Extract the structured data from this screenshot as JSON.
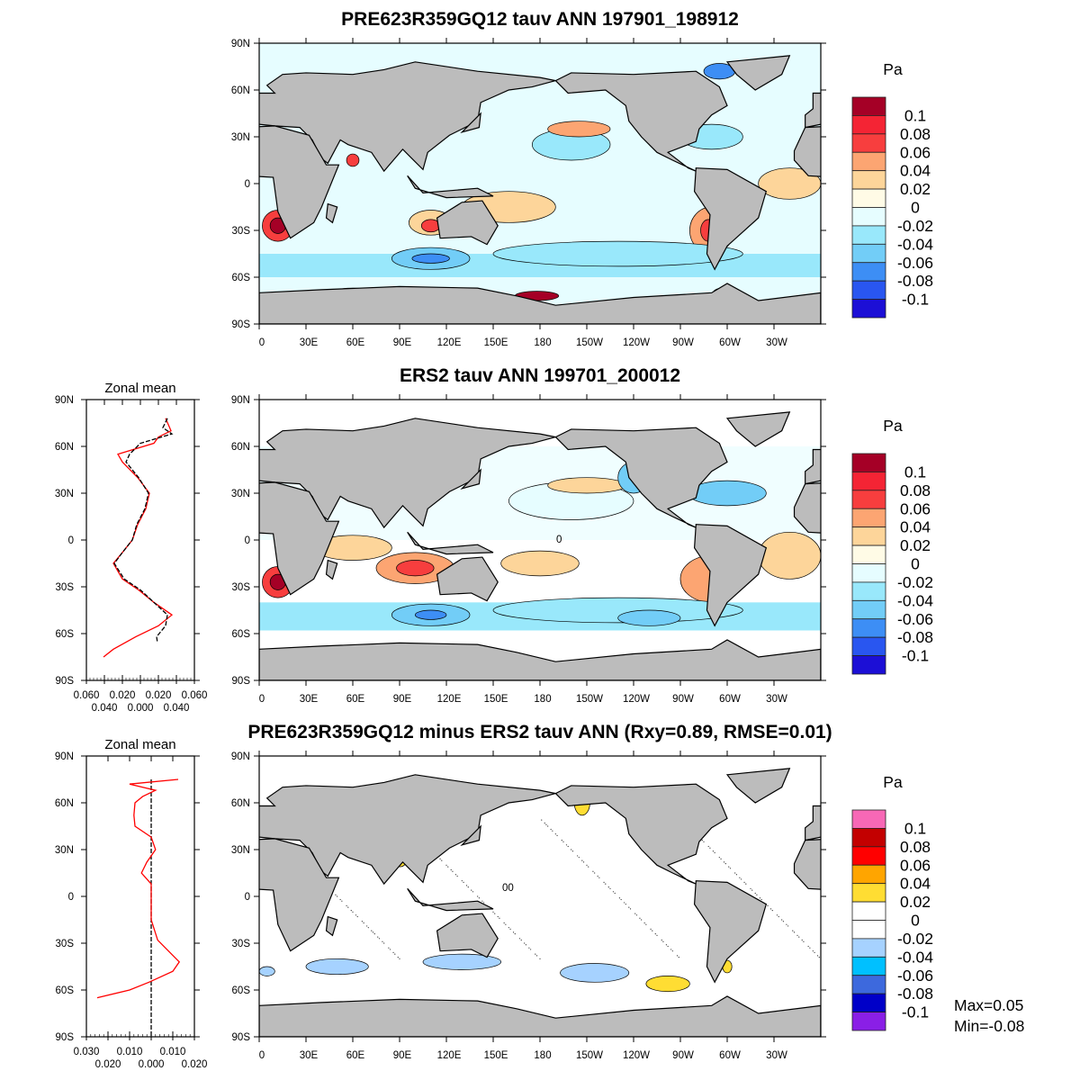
{
  "panels": [
    {
      "title": "PRE623R359GQ12 tauv ANN 197901_198912",
      "units": "Pa",
      "colorbar": "model"
    },
    {
      "title": "ERS2 tauv ANN 199701_200012",
      "units": "Pa",
      "colorbar": "model",
      "contour_label": "0"
    },
    {
      "title": "PRE623R359GQ12 minus ERS2 tauv ANN (Rxy=0.89, RMSE=0.01)",
      "units": "Pa",
      "colorbar": "diff",
      "contour_label": "00"
    }
  ],
  "lat_labels": [
    "90N",
    "60N",
    "30N",
    "0",
    "30S",
    "60S",
    "90S"
  ],
  "lon_labels": [
    "0",
    "30E",
    "60E",
    "90E",
    "120E",
    "150E",
    "180",
    "150W",
    "120W",
    "90W",
    "60W",
    "30W"
  ],
  "colorbar_labels": [
    "0.1",
    "0.08",
    "0.06",
    "0.04",
    "0.02",
    "0",
    "-0.02",
    "-0.04",
    "-0.06",
    "-0.08",
    "-0.1"
  ],
  "colorbar_colors": {
    "model": [
      "#a50026",
      "#f42434",
      "#f73e3e",
      "#fca572",
      "#fdd59a",
      "#fffbe6",
      "#e6fdff",
      "#99e8fb",
      "#72cdf7",
      "#3d8ef5",
      "#2956f0",
      "#1c0fd6"
    ],
    "diff": [
      "#f768b6",
      "#c30000",
      "#ff0000",
      "#ffa500",
      "#ffdd33",
      "#ffffff",
      "#ffffff",
      "#a6d2ff",
      "#00c0ff",
      "#3d69dd",
      "#0000c8",
      "#8a1fe6"
    ]
  },
  "stats": {
    "max": "Max=0.05",
    "min": "Min=-0.08"
  },
  "land_color": "#bcbcbc",
  "zonal_mean": [
    {
      "title": "Zonal mean",
      "x_tick_labels": [
        "0.060",
        "0.040",
        "0.020",
        "0.000",
        "0.020",
        "0.040",
        "0.060"
      ],
      "xlim": [
        -0.06,
        0.06
      ],
      "model": [
        [
          78,
          0.03
        ],
        [
          72,
          0.025
        ],
        [
          68,
          0.035
        ],
        [
          62,
          0.0
        ],
        [
          55,
          -0.012
        ],
        [
          50,
          -0.016
        ],
        [
          40,
          -0.002
        ],
        [
          30,
          0.009
        ],
        [
          20,
          0.005
        ],
        [
          10,
          -0.004
        ],
        [
          0,
          -0.009
        ],
        [
          -8,
          -0.02
        ],
        [
          -15,
          -0.029
        ],
        [
          -25,
          -0.018
        ],
        [
          -32,
          0.0
        ],
        [
          -40,
          0.015
        ],
        [
          -48,
          0.03
        ],
        [
          -55,
          0.028
        ],
        [
          -62,
          0.018
        ],
        [
          -66,
          0.019
        ]
      ],
      "obs": [
        [
          78,
          0.028
        ],
        [
          70,
          0.034
        ],
        [
          66,
          0.02
        ],
        [
          62,
          0.015
        ],
        [
          55,
          -0.025
        ],
        [
          50,
          -0.02
        ],
        [
          40,
          -0.003
        ],
        [
          30,
          0.01
        ],
        [
          20,
          0.006
        ],
        [
          10,
          -0.003
        ],
        [
          0,
          -0.009
        ],
        [
          -8,
          -0.02
        ],
        [
          -15,
          -0.03
        ],
        [
          -25,
          -0.02
        ],
        [
          -32,
          -0.002
        ],
        [
          -40,
          0.015
        ],
        [
          -48,
          0.035
        ],
        [
          -55,
          0.02
        ],
        [
          -62,
          -0.005
        ],
        [
          -70,
          -0.03
        ],
        [
          -75,
          -0.041
        ]
      ]
    },
    {
      "title": "Zonal mean",
      "x_tick_labels": [
        "0.030",
        "0.020",
        "0.010",
        "0.000",
        "0.010",
        "0.020"
      ],
      "xlim": [
        -0.03,
        0.02
      ],
      "diff": [
        [
          75,
          0.0125
        ],
        [
          72,
          -0.01
        ],
        [
          68,
          0.002
        ],
        [
          64,
          -0.004
        ],
        [
          60,
          -0.0075
        ],
        [
          52,
          -0.008
        ],
        [
          45,
          -0.0075
        ],
        [
          38,
          0.0
        ],
        [
          30,
          0.002
        ],
        [
          22,
          -0.002
        ],
        [
          15,
          -0.0045
        ],
        [
          8,
          0.0
        ],
        [
          0,
          0.0
        ],
        [
          -15,
          0.0
        ],
        [
          -28,
          0.003
        ],
        [
          -35,
          0.008
        ],
        [
          -42,
          0.013
        ],
        [
          -48,
          0.01
        ],
        [
          -55,
          -0.001
        ],
        [
          -60,
          -0.01
        ],
        [
          -65,
          -0.025
        ]
      ],
      "zero_line": [
        75,
        -90
      ]
    }
  ]
}
